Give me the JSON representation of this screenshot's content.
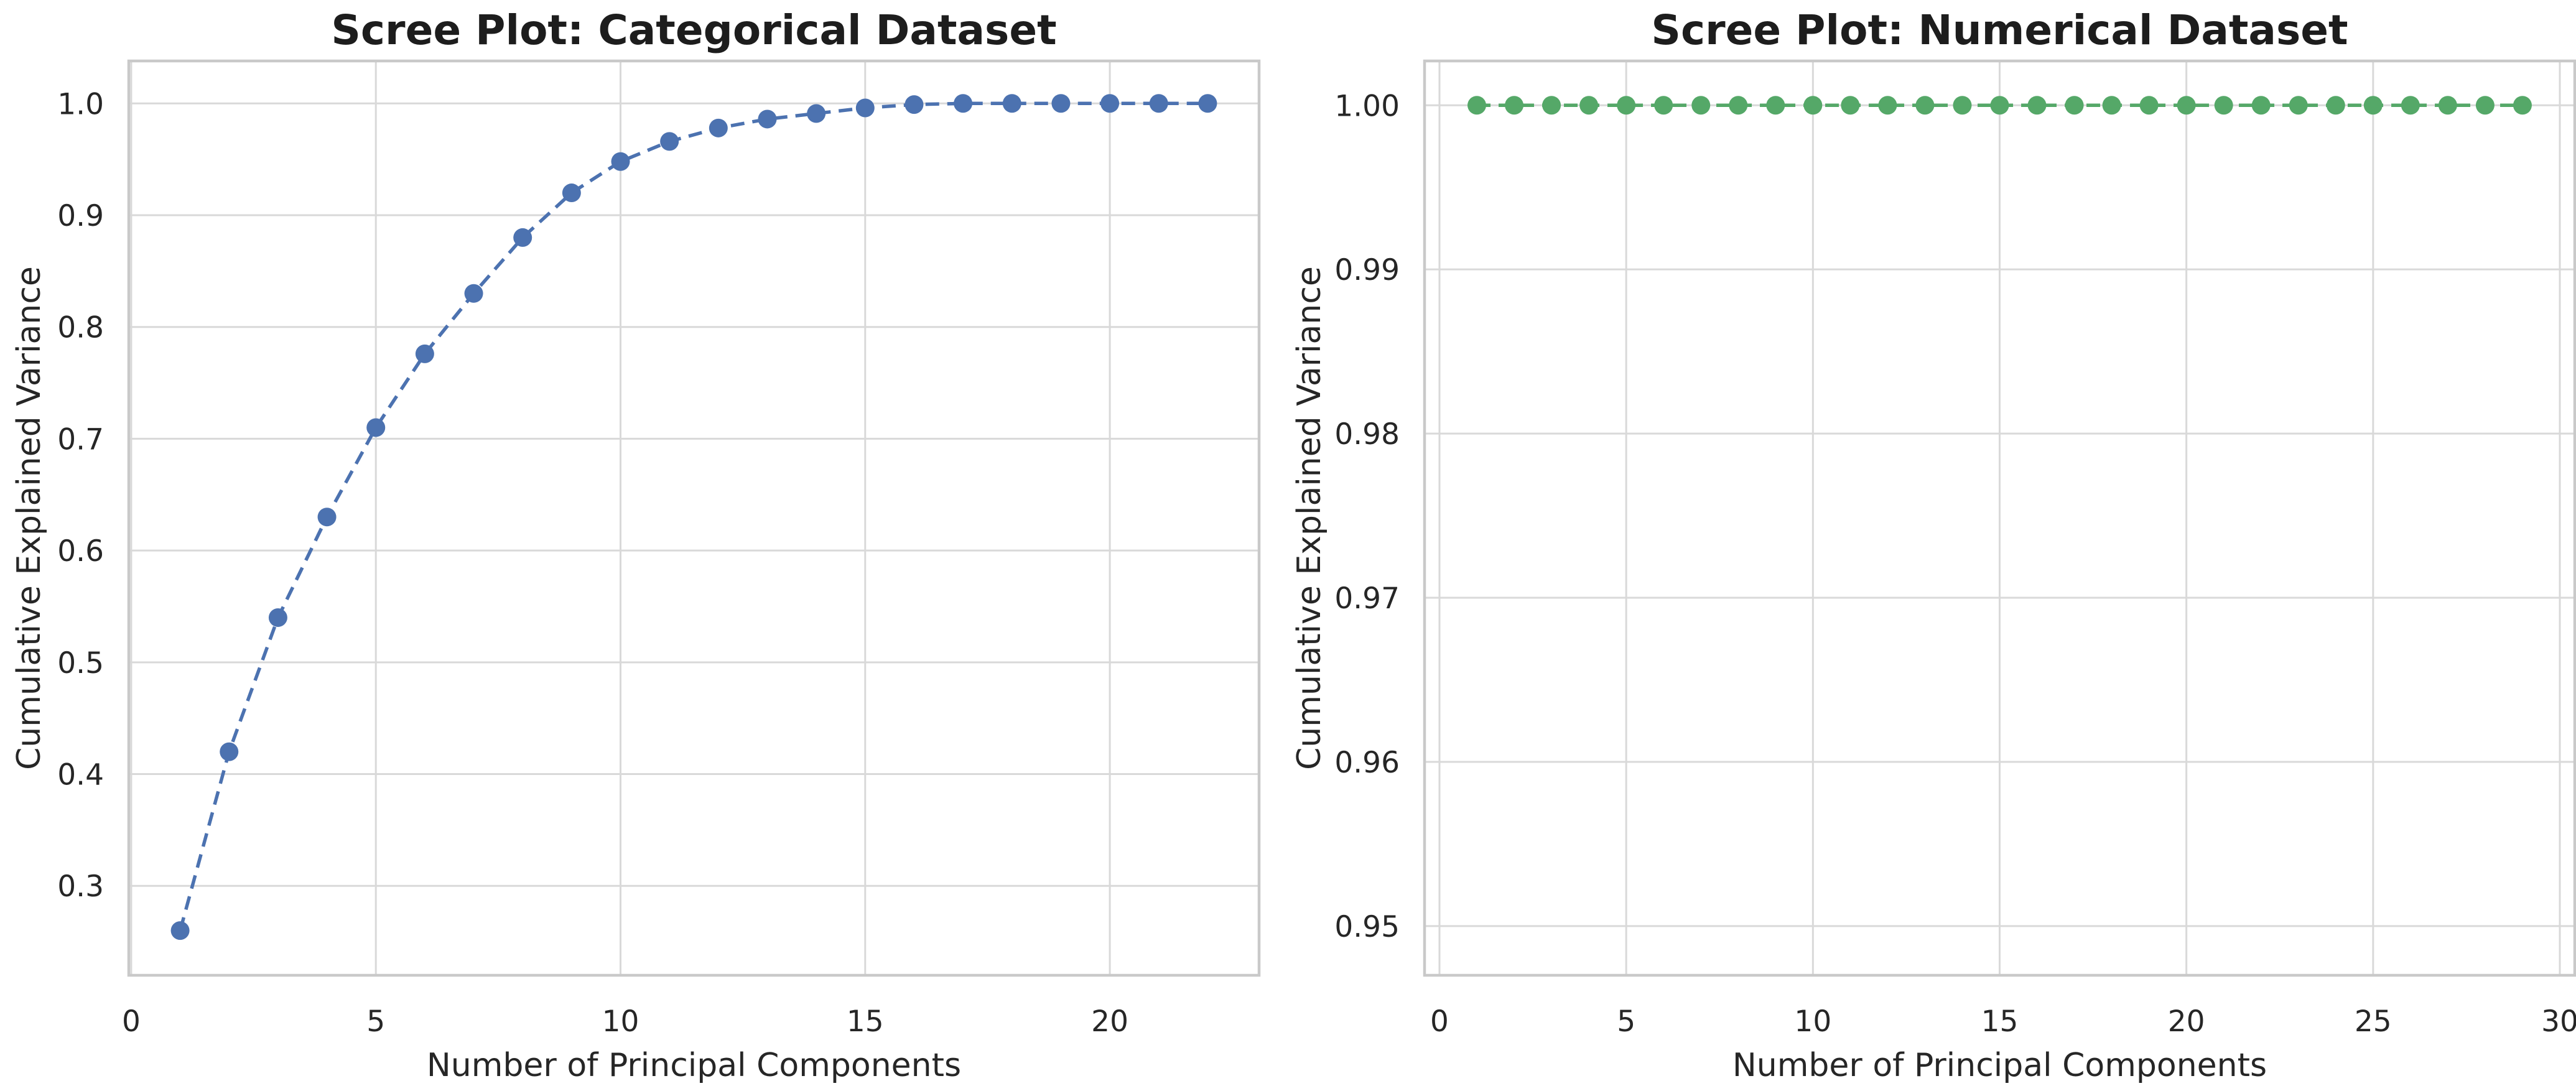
{
  "figure": {
    "background": "#ffffff"
  },
  "colors": {
    "grid": "#d9d9d9",
    "spine": "#c9c9c9",
    "text": "#262626",
    "title_text": "#1d1d1d",
    "categorical_series": "#4C72B0",
    "numerical_series": "#55A868"
  },
  "chart_data": [
    {
      "type": "line",
      "title": "Scree Plot: Categorical Dataset",
      "xlabel": "Number of Principal Components",
      "ylabel": "Cumulative Explained Variance",
      "grid": true,
      "legend": false,
      "line_style": "dashed",
      "marker": "circle",
      "line_color": "#4C72B0",
      "xlim": [
        -0.05,
        23.05
      ],
      "ylim": [
        0.22,
        1.038
      ],
      "xticks": [
        0,
        5,
        10,
        15,
        20
      ],
      "xtick_labels": [
        "0",
        "5",
        "10",
        "15",
        "20"
      ],
      "yticks": [
        0.3,
        0.4,
        0.5,
        0.6,
        0.7,
        0.8,
        0.9,
        1.0
      ],
      "ytick_labels": [
        "0.3",
        "0.4",
        "0.5",
        "0.6",
        "0.7",
        "0.8",
        "0.9",
        "1.0"
      ],
      "series": [
        {
          "name": "cumulative explained variance",
          "x": [
            1,
            2,
            3,
            4,
            5,
            6,
            7,
            8,
            9,
            10,
            11,
            12,
            13,
            14,
            15,
            16,
            17,
            18,
            19,
            20,
            21,
            22
          ],
          "y": [
            0.26,
            0.42,
            0.54,
            0.63,
            0.71,
            0.776,
            0.83,
            0.88,
            0.92,
            0.948,
            0.966,
            0.978,
            0.986,
            0.991,
            0.996,
            0.999,
            1.0,
            1.0,
            1.0,
            1.0,
            1.0,
            1.0
          ]
        }
      ]
    },
    {
      "type": "line",
      "title": "Scree Plot: Numerical Dataset",
      "xlabel": "Number of Principal Components",
      "ylabel": "Cumulative Explained Variance",
      "grid": true,
      "legend": false,
      "line_style": "dashed",
      "marker": "circle",
      "line_color": "#55A868",
      "xlim": [
        -0.4,
        30.4
      ],
      "ylim": [
        0.947,
        1.0027
      ],
      "xticks": [
        0,
        5,
        10,
        15,
        20,
        25,
        30
      ],
      "xtick_labels": [
        "0",
        "5",
        "10",
        "15",
        "20",
        "25",
        "30"
      ],
      "yticks": [
        0.95,
        0.96,
        0.97,
        0.98,
        0.99,
        1.0
      ],
      "ytick_labels": [
        "0.95",
        "0.96",
        "0.97",
        "0.98",
        "0.99",
        "1.00"
      ],
      "series": [
        {
          "name": "cumulative explained variance",
          "x": [
            1,
            2,
            3,
            4,
            5,
            6,
            7,
            8,
            9,
            10,
            11,
            12,
            13,
            14,
            15,
            16,
            17,
            18,
            19,
            20,
            21,
            22,
            23,
            24,
            25,
            26,
            27,
            28,
            29
          ],
          "y": [
            1.0,
            1.0,
            1.0,
            1.0,
            1.0,
            1.0,
            1.0,
            1.0,
            1.0,
            1.0,
            1.0,
            1.0,
            1.0,
            1.0,
            1.0,
            1.0,
            1.0,
            1.0,
            1.0,
            1.0,
            1.0,
            1.0,
            1.0,
            1.0,
            1.0,
            1.0,
            1.0,
            1.0,
            1.0
          ]
        }
      ]
    }
  ]
}
